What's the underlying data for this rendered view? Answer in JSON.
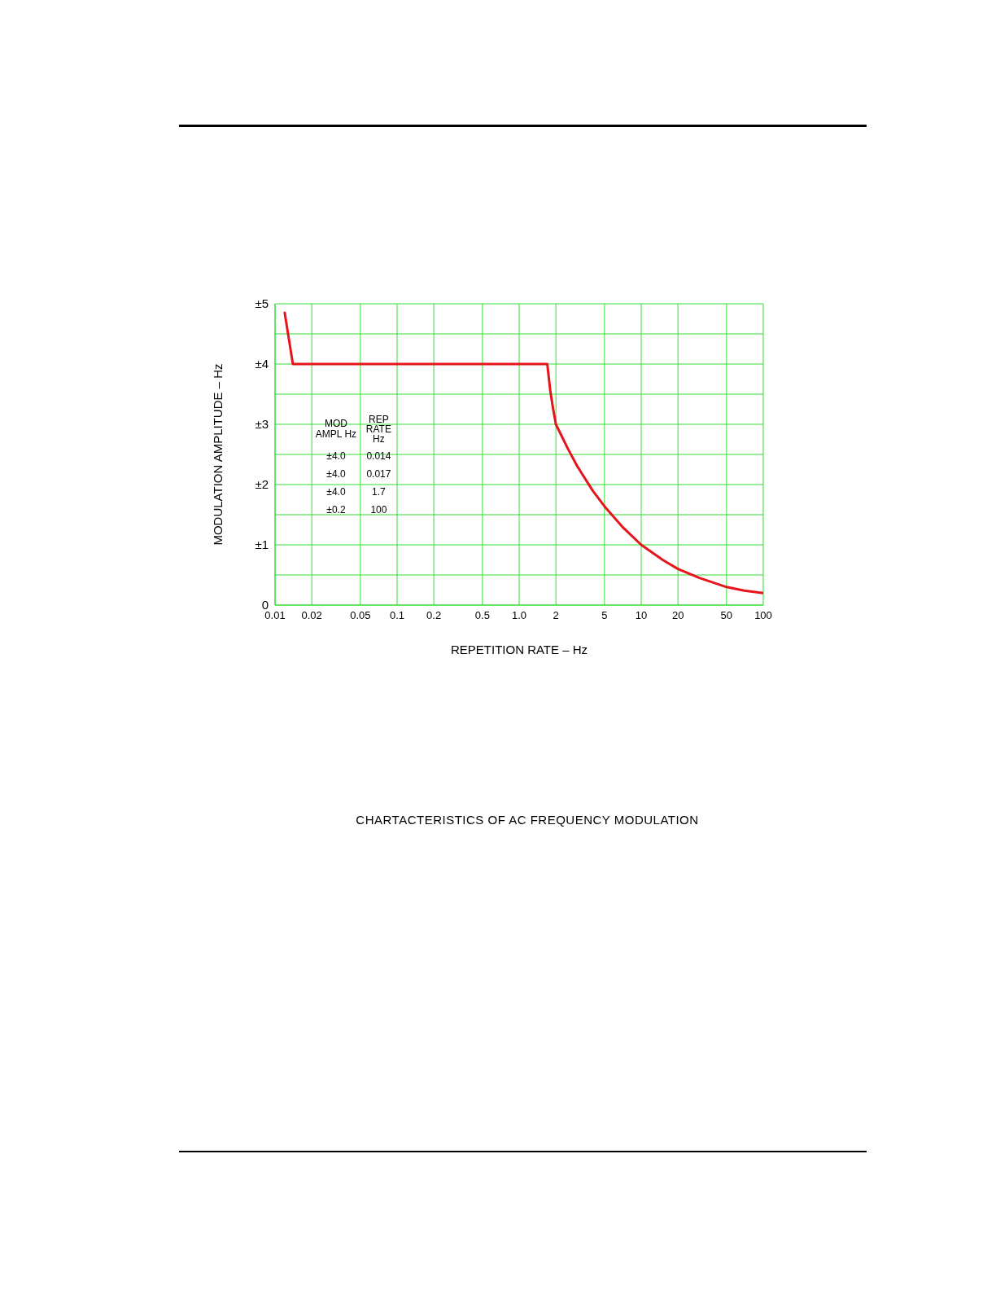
{
  "chart_data": {
    "type": "line",
    "title": "CHARTACTERISTICS OF AC FREQUENCY MODULATION",
    "xlabel": "REPETITION RATE  –  Hz",
    "ylabel": "MODULATION  AMPLITUDE  –  Hz",
    "log": "x",
    "grid": true,
    "legend": false,
    "marker": "none",
    "line_style": "solid",
    "xlim": [
      0.01,
      100
    ],
    "ylim": [
      0,
      5
    ],
    "xticks": [
      0.01,
      0.02,
      0.05,
      0.1,
      0.2,
      0.5,
      {
        "value": 1,
        "label": "1.0"
      },
      2,
      5,
      10,
      20,
      50,
      100
    ],
    "yticks": [
      {
        "value": 0,
        "label": "0"
      },
      {
        "value": 0.5,
        "label": null
      },
      {
        "value": 1,
        "label": "±1"
      },
      {
        "value": 1.5,
        "label": null
      },
      {
        "value": 2,
        "label": "±2"
      },
      {
        "value": 2.5,
        "label": null
      },
      {
        "value": 3,
        "label": "±3"
      },
      {
        "value": 3.5,
        "label": null
      },
      {
        "value": 4,
        "label": "±4"
      },
      {
        "value": 4.5,
        "label": null
      },
      {
        "value": 5,
        "label": "±5"
      }
    ],
    "x": [
      0.012,
      0.014,
      0.017,
      0.1,
      1,
      1.7,
      1.8,
      1.9,
      2,
      2.5,
      3,
      4,
      5,
      7,
      10,
      15,
      20,
      30,
      50,
      70,
      100
    ],
    "series": [
      {
        "color": "#e8141c",
        "values": [
          4.85,
          4,
          4,
          4,
          4,
          4,
          3.55,
          3.25,
          3.0,
          2.6,
          2.3,
          1.9,
          1.64,
          1.3,
          1.0,
          0.75,
          0.6,
          0.45,
          0.3,
          0.24,
          0.2
        ]
      }
    ],
    "annotations": [
      "MOD AMPL Hz",
      "REP RATE Hz",
      "±4.0",
      "0.014",
      "±4.0",
      "0.017",
      "±4.0",
      "1.7",
      "±0.2",
      "100"
    ]
  }
}
